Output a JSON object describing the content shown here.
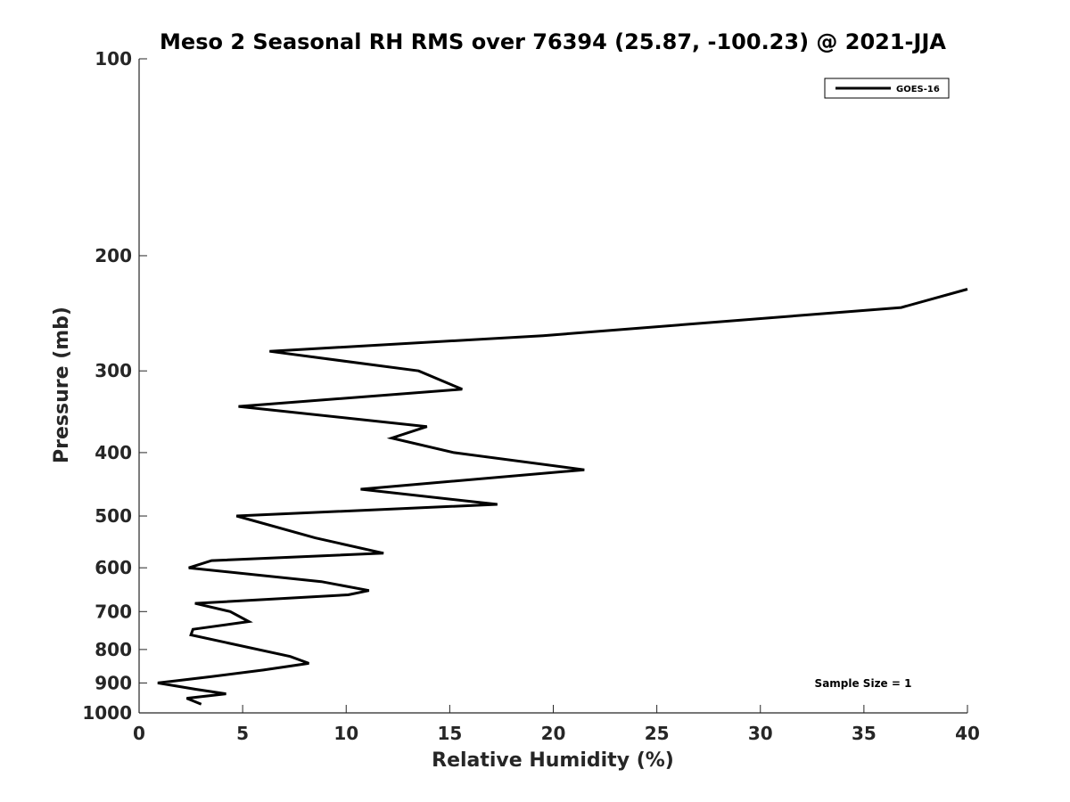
{
  "chart_data": {
    "type": "line",
    "title": "Meso 2 Seasonal RH RMS over 76394 (25.87, -100.23) @ 2021-JJA",
    "xlabel": "Relative Humidity (%)",
    "ylabel": "Pressure (mb)",
    "xlim": [
      0,
      40
    ],
    "ylim": [
      100,
      1000
    ],
    "y_scale": "log",
    "y_reversed": true,
    "x_ticks": [
      "0",
      "5",
      "10",
      "15",
      "20",
      "25",
      "30",
      "35",
      "40"
    ],
    "y_ticks": [
      "100",
      "200",
      "300",
      "400",
      "500",
      "600",
      "700",
      "800",
      "900",
      "1000"
    ],
    "grid": false,
    "legend_position": "top-right",
    "annotation": "Sample Size = 1",
    "series": [
      {
        "name": "GOES-16",
        "color": "#000000",
        "x": [
          40.0,
          36.8,
          19.5,
          6.3,
          13.5,
          15.6,
          4.8,
          13.9,
          12.2,
          15.2,
          21.5,
          10.7,
          17.3,
          4.7,
          8.5,
          11.8,
          3.5,
          2.4,
          8.8,
          11.1,
          10.1,
          2.7,
          4.4,
          5.3,
          2.6,
          2.5,
          7.3,
          8.2,
          6.0,
          3.5,
          0.9,
          2.7,
          4.2,
          2.3,
          3.0
        ],
        "y": [
          225,
          240,
          265,
          280,
          300,
          320,
          340,
          365,
          380,
          400,
          425,
          455,
          480,
          500,
          540,
          570,
          585,
          600,
          630,
          650,
          660,
          680,
          700,
          725,
          745,
          760,
          820,
          840,
          860,
          880,
          900,
          920,
          935,
          950,
          970
        ]
      }
    ]
  }
}
